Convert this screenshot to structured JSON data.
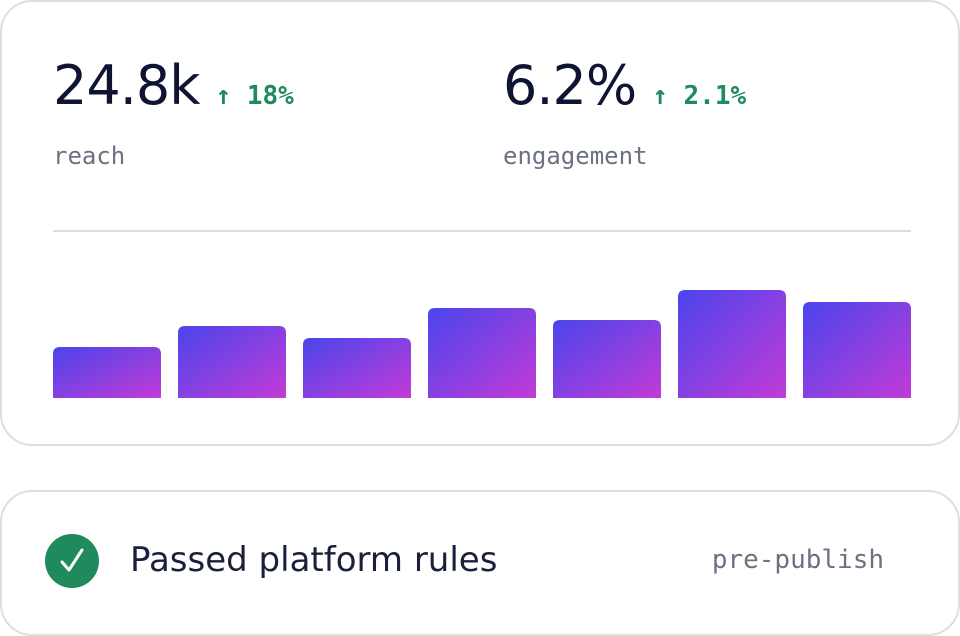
{
  "stats": [
    {
      "value": "24.8k",
      "change": "↑ 18%",
      "label": "reach"
    },
    {
      "value": "6.2%",
      "change": "↑ 2.1%",
      "label": "engagement"
    }
  ],
  "chart_data": {
    "type": "bar",
    "values": [
      51,
      72,
      60,
      90,
      78,
      108,
      96
    ],
    "colors": [
      "#4a45ec",
      "#c23bd6"
    ]
  },
  "status": {
    "text": "Passed platform rules",
    "tag": "pre-publish"
  }
}
